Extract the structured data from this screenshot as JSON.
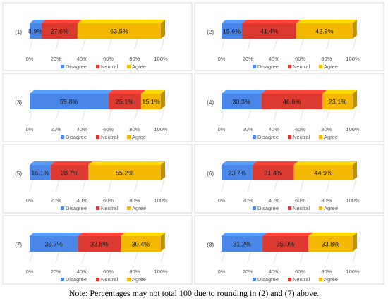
{
  "legend_labels": [
    "Disagree",
    "Neutral",
    "Agree"
  ],
  "colors": {
    "Disagree": "#4a86e8",
    "Neutral": "#dc3a31",
    "Agree": "#f4b800",
    "Agree_side": "#c99700",
    "Agree_top": "#ffd23f",
    "axis_text": "#595959",
    "panel_border": "#d9d9d9",
    "diagonal_grid": "#e3e3e3"
  },
  "note": "Note: Percentages may not total 100 due to rounding in (2) and (7) above.",
  "chart_data": [
    {
      "type": "bar",
      "label": "(1)",
      "categories": [
        "Disagree",
        "Neutral",
        "Agree"
      ],
      "values": [
        8.9,
        27.6,
        63.5
      ],
      "value_labels": [
        "8.9%",
        "27.6%",
        "63.5%"
      ],
      "xlim": [
        0,
        100
      ],
      "ticks": [
        "0%",
        "20%",
        "40%",
        "60%",
        "80%",
        "100%"
      ],
      "legend": "bottom"
    },
    {
      "type": "bar",
      "label": "(2)",
      "categories": [
        "Disagree",
        "Neutral",
        "Agree"
      ],
      "values": [
        15.6,
        41.4,
        42.9
      ],
      "value_labels": [
        "15.6%",
        "41.4%",
        "42.9%"
      ],
      "xlim": [
        0,
        100
      ],
      "ticks": [
        "0%",
        "20%",
        "40%",
        "60%",
        "80%",
        "100%"
      ],
      "legend": "bottom"
    },
    {
      "type": "bar",
      "label": "(3)",
      "categories": [
        "Disagree",
        "Neutral",
        "Agree"
      ],
      "values": [
        59.8,
        25.1,
        15.1
      ],
      "value_labels": [
        "59.8%",
        "25.1%",
        "15.1%"
      ],
      "xlim": [
        0,
        100
      ],
      "ticks": [
        "0%",
        "20%",
        "40%",
        "60%",
        "80%",
        "100%"
      ],
      "legend": "bottom"
    },
    {
      "type": "bar",
      "label": "(4)",
      "categories": [
        "Disagree",
        "Neutral",
        "Agree"
      ],
      "values": [
        30.3,
        46.6,
        23.1
      ],
      "value_labels": [
        "30.3%",
        "46.6%",
        "23.1%"
      ],
      "xlim": [
        0,
        100
      ],
      "ticks": [
        "0%",
        "20%",
        "40%",
        "60%",
        "80%",
        "100%"
      ],
      "legend": "bottom"
    },
    {
      "type": "bar",
      "label": "(5)",
      "categories": [
        "Disagree",
        "Neutral",
        "Agree"
      ],
      "values": [
        16.1,
        28.7,
        55.2
      ],
      "value_labels": [
        "16.1%",
        "28.7%",
        "55.2%"
      ],
      "xlim": [
        0,
        100
      ],
      "ticks": [
        "0%",
        "20%",
        "40%",
        "60%",
        "80%",
        "100%"
      ],
      "legend": "bottom"
    },
    {
      "type": "bar",
      "label": "(6)",
      "categories": [
        "Disagree",
        "Neutral",
        "Agree"
      ],
      "values": [
        23.7,
        31.4,
        44.9
      ],
      "value_labels": [
        "23.7%",
        "31.4%",
        "44.9%"
      ],
      "xlim": [
        0,
        100
      ],
      "ticks": [
        "0%",
        "20%",
        "40%",
        "60%",
        "80%",
        "100%"
      ],
      "legend": "bottom"
    },
    {
      "type": "bar",
      "label": "(7)",
      "categories": [
        "Disagree",
        "Neutral",
        "Agree"
      ],
      "values": [
        36.7,
        32.8,
        30.4
      ],
      "value_labels": [
        "36.7%",
        "32.8%",
        "30.4%"
      ],
      "xlim": [
        0,
        100
      ],
      "ticks": [
        "0%",
        "20%",
        "40%",
        "60%",
        "80%",
        "100%"
      ],
      "legend": "bottom"
    },
    {
      "type": "bar",
      "label": "(8)",
      "categories": [
        "Disagree",
        "Neutral",
        "Agree"
      ],
      "values": [
        31.2,
        35.0,
        33.8
      ],
      "value_labels": [
        "31.2%",
        "35.0%",
        "33.8%"
      ],
      "xlim": [
        0,
        100
      ],
      "ticks": [
        "0%",
        "20%",
        "40%",
        "60%",
        "80%",
        "100%"
      ],
      "legend": "bottom"
    }
  ]
}
